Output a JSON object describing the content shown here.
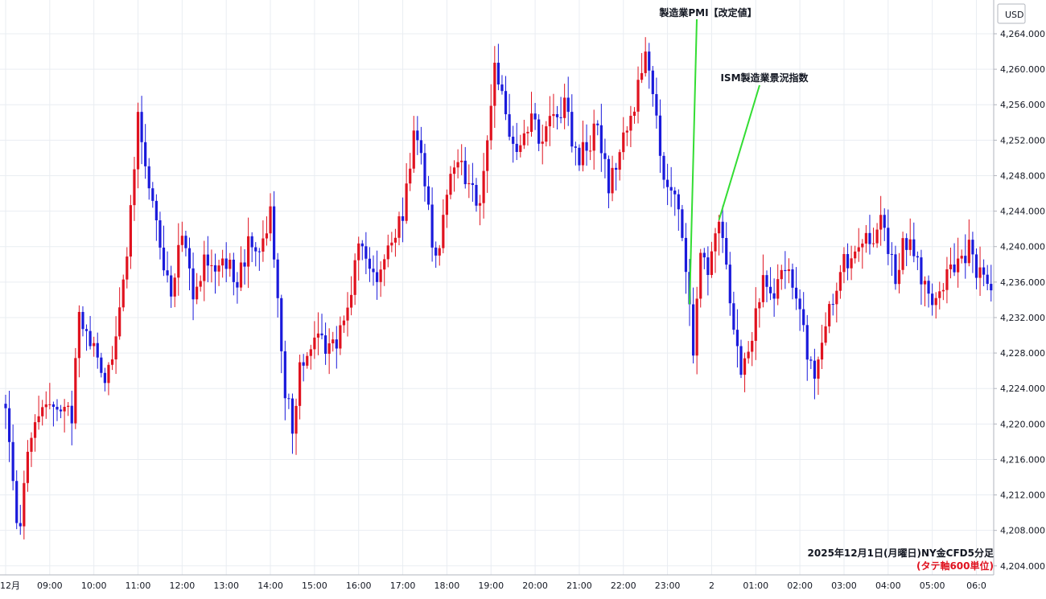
{
  "chart_data": {
    "type": "candlestick",
    "currency": "USD",
    "caption_main": "2025年12月1日(月曜日)NY金CFD5分足",
    "caption_sub": "(タテ軸600単位)",
    "ylim": [
      4204,
      4266
    ],
    "yticks": [
      "4,264.000",
      "4,260.000",
      "4,256.000",
      "4,252.000",
      "4,248.000",
      "4,244.000",
      "4,240.000",
      "4,236.000",
      "4,232.000",
      "4,228.000",
      "4,224.000",
      "4,220.000",
      "4,216.000",
      "4,212.000",
      "4,208.000",
      "4,204.000"
    ],
    "ytick_values": [
      4264,
      4260,
      4256,
      4252,
      4248,
      4244,
      4240,
      4236,
      4232,
      4228,
      4224,
      4220,
      4216,
      4212,
      4208,
      4204
    ],
    "xticks": [
      "12月",
      "09:00",
      "10:00",
      "11:00",
      "12:00",
      "13:00",
      "14:00",
      "15:00",
      "16:00",
      "17:00",
      "18:00",
      "19:00",
      "20:00",
      "21:00",
      "22:00",
      "23:00",
      "2",
      "01:00",
      "02:00",
      "03:00",
      "04:00",
      "05:00",
      "06:0"
    ],
    "xtick_index": [
      0,
      12,
      24,
      36,
      48,
      60,
      72,
      84,
      96,
      108,
      120,
      132,
      144,
      156,
      168,
      180,
      192,
      204,
      216,
      228,
      240,
      252,
      264
    ],
    "grid": true,
    "colors": {
      "up": "#e0121f",
      "down": "#1a1adb",
      "annotation_line": "#33dd33",
      "caption_sub": "#e0121f"
    },
    "annotations": [
      {
        "label": "製造業PMI【改定値】",
        "bar_index": 186,
        "price": 4233.5
      },
      {
        "label": "ISM製造業景況指数",
        "bar_index": 194,
        "price": 4243
      }
    ],
    "anchors": [
      [
        0,
        4221
      ],
      [
        3,
        4210
      ],
      [
        4,
        4208
      ],
      [
        6,
        4218
      ],
      [
        12,
        4223
      ],
      [
        18,
        4221
      ],
      [
        20,
        4232
      ],
      [
        24,
        4229
      ],
      [
        27,
        4224
      ],
      [
        30,
        4229
      ],
      [
        33,
        4239
      ],
      [
        36,
        4255
      ],
      [
        39,
        4247
      ],
      [
        42,
        4240
      ],
      [
        45,
        4235
      ],
      [
        48,
        4241
      ],
      [
        51,
        4235
      ],
      [
        54,
        4238
      ],
      [
        57,
        4237
      ],
      [
        60,
        4238
      ],
      [
        63,
        4236
      ],
      [
        66,
        4240
      ],
      [
        69,
        4239
      ],
      [
        72,
        4244
      ],
      [
        74,
        4234
      ],
      [
        76,
        4224
      ],
      [
        78,
        4220
      ],
      [
        80,
        4226
      ],
      [
        84,
        4230
      ],
      [
        88,
        4228
      ],
      [
        92,
        4231
      ],
      [
        96,
        4240
      ],
      [
        100,
        4236
      ],
      [
        102,
        4238
      ],
      [
        105,
        4241
      ],
      [
        108,
        4244
      ],
      [
        111,
        4252
      ],
      [
        113,
        4250
      ],
      [
        115,
        4244
      ],
      [
        117,
        4238
      ],
      [
        120,
        4246
      ],
      [
        123,
        4250
      ],
      [
        126,
        4247
      ],
      [
        129,
        4245
      ],
      [
        131,
        4251
      ],
      [
        133,
        4260
      ],
      [
        135,
        4257
      ],
      [
        137,
        4252
      ],
      [
        140,
        4251
      ],
      [
        143,
        4254
      ],
      [
        146,
        4252
      ],
      [
        149,
        4255
      ],
      [
        152,
        4256
      ],
      [
        155,
        4250
      ],
      [
        158,
        4251
      ],
      [
        161,
        4254
      ],
      [
        164,
        4247
      ],
      [
        167,
        4251
      ],
      [
        170,
        4254
      ],
      [
        172,
        4258
      ],
      [
        174,
        4262
      ],
      [
        175,
        4260
      ],
      [
        177,
        4254
      ],
      [
        179,
        4248
      ],
      [
        181,
        4246
      ],
      [
        183,
        4245
      ],
      [
        184,
        4240
      ],
      [
        185,
        4236
      ],
      [
        186,
        4233
      ],
      [
        187,
        4228
      ],
      [
        188,
        4235
      ],
      [
        189,
        4240
      ],
      [
        191,
        4238
      ],
      [
        193,
        4241
      ],
      [
        194,
        4243
      ],
      [
        196,
        4238
      ],
      [
        198,
        4230
      ],
      [
        200,
        4226
      ],
      [
        202,
        4229
      ],
      [
        204,
        4232
      ],
      [
        206,
        4236
      ],
      [
        208,
        4234
      ],
      [
        211,
        4237
      ],
      [
        214,
        4236
      ],
      [
        216,
        4234
      ],
      [
        218,
        4228
      ],
      [
        220,
        4226
      ],
      [
        222,
        4230
      ],
      [
        225,
        4234
      ],
      [
        228,
        4238
      ],
      [
        230,
        4238
      ],
      [
        233,
        4240
      ],
      [
        236,
        4241
      ],
      [
        238,
        4243
      ],
      [
        240,
        4240
      ],
      [
        242,
        4236
      ],
      [
        244,
        4241
      ],
      [
        246,
        4240
      ],
      [
        248,
        4238
      ],
      [
        250,
        4235
      ],
      [
        252,
        4233
      ],
      [
        254,
        4235
      ],
      [
        257,
        4237
      ],
      [
        260,
        4238
      ],
      [
        262,
        4240
      ],
      [
        264,
        4237
      ],
      [
        266,
        4236
      ],
      [
        268,
        4235
      ]
    ]
  }
}
